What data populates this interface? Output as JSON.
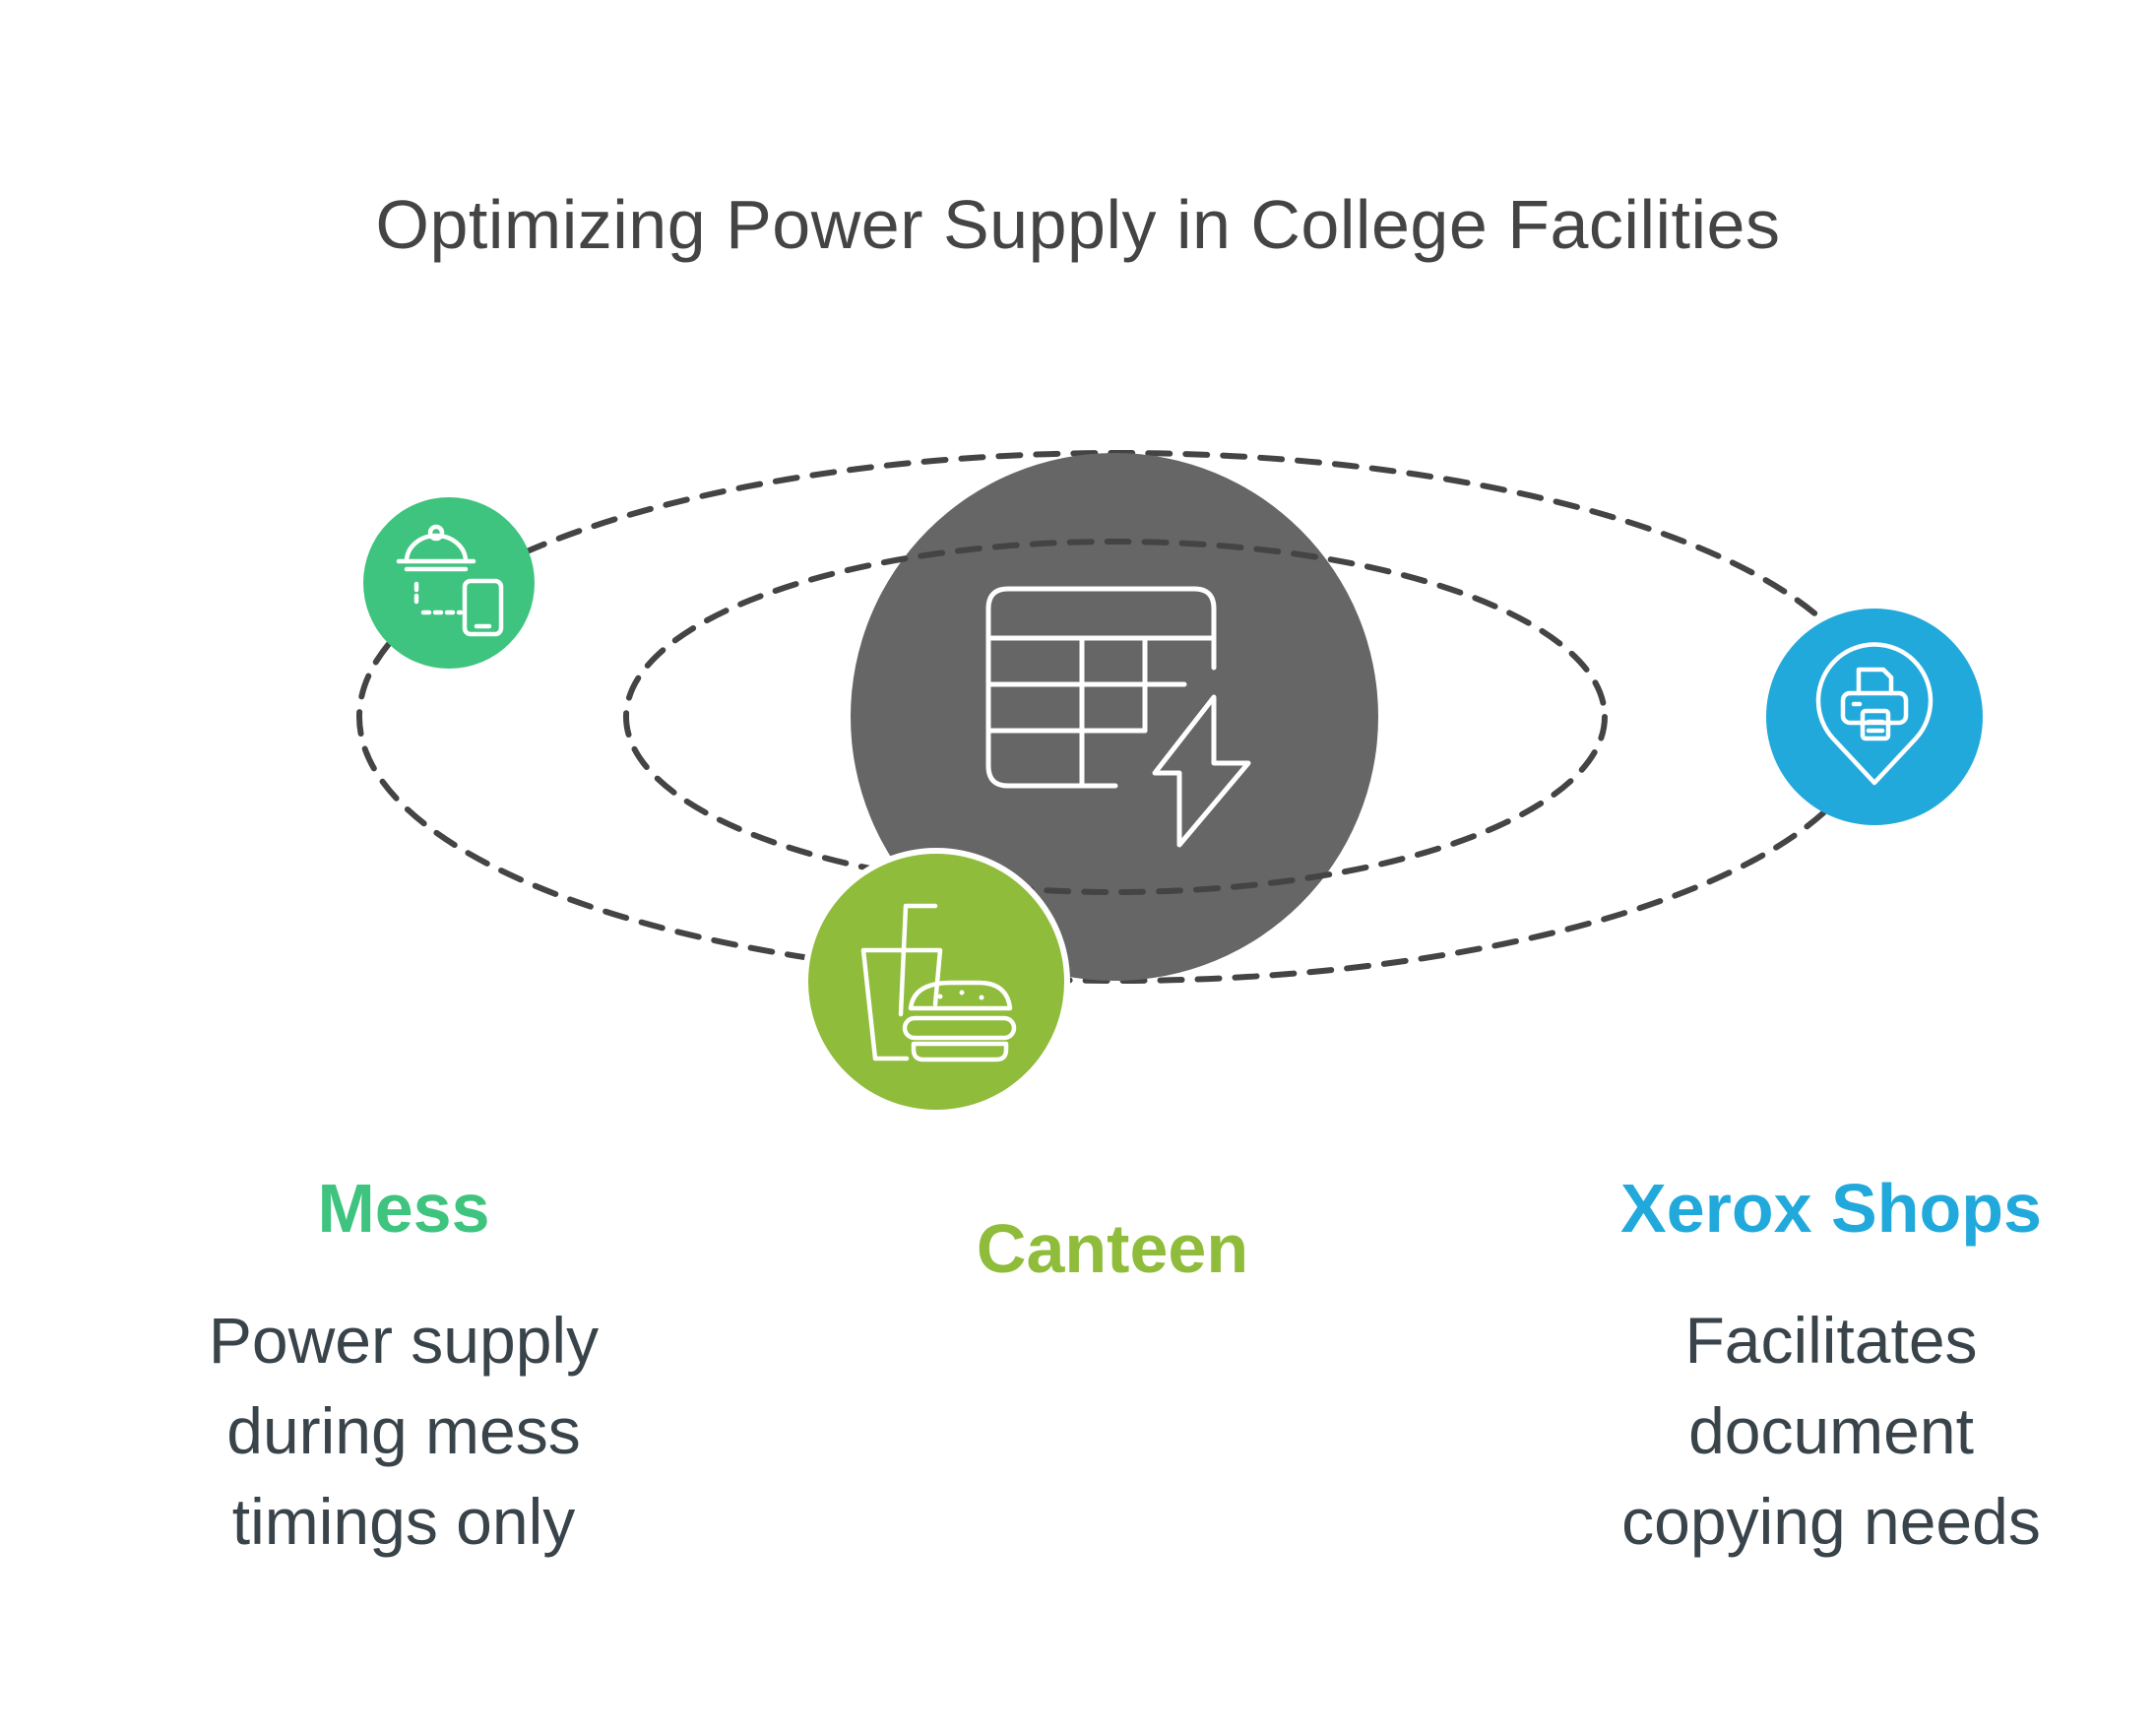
{
  "title": "Optimizing Power Supply in College Facilities",
  "colors": {
    "center": "#666666",
    "mess": "#3ec47f",
    "canteen": "#8fbc3a",
    "xerox": "#22a9dc",
    "orbit": "#444444",
    "text": "#39434a"
  },
  "center": {
    "icon": "table-lightning-icon"
  },
  "nodes": {
    "mess": {
      "label": "Mess",
      "icon": "food-delivery-phone-icon",
      "description": [
        "Power supply",
        "during mess",
        "timings only"
      ]
    },
    "canteen": {
      "label": "Canteen",
      "icon": "drink-burger-icon"
    },
    "xerox": {
      "label": "Xerox Shops",
      "icon": "printer-location-icon",
      "description": [
        "Facilitates",
        "document",
        "copying needs"
      ]
    }
  }
}
